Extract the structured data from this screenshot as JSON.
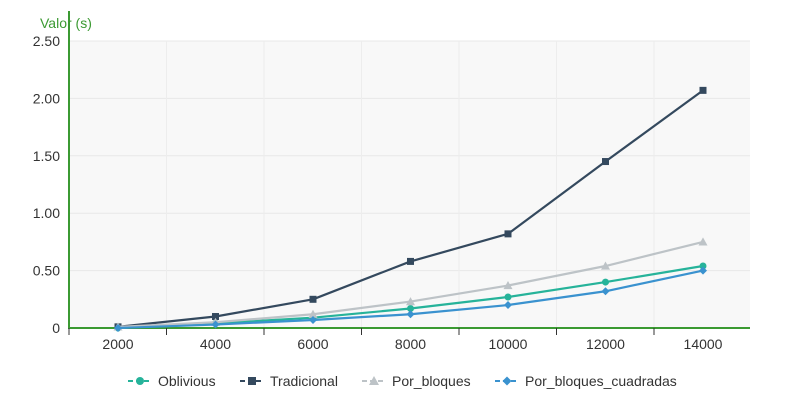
{
  "chart_data": {
    "type": "line",
    "ylabel": "Valor (s)",
    "xlabel": "",
    "ylim": [
      0,
      2.5
    ],
    "yticks": [
      0,
      0.5,
      1.0,
      1.5,
      2.0,
      2.5
    ],
    "ytick_labels": [
      "0",
      "0.50",
      "1.00",
      "1.50",
      "2.00",
      "2.50"
    ],
    "categories": [
      "2000",
      "4000",
      "6000",
      "8000",
      "10000",
      "12000",
      "14000"
    ],
    "series": [
      {
        "name": "Oblivious",
        "color": "#26b39a",
        "marker": "circle",
        "values": [
          0.0,
          0.04,
          0.09,
          0.17,
          0.27,
          0.4,
          0.54
        ]
      },
      {
        "name": "Tradicional",
        "color": "#34495e",
        "marker": "square",
        "values": [
          0.01,
          0.1,
          0.25,
          0.58,
          0.82,
          1.45,
          2.07
        ]
      },
      {
        "name": "Por_bloques",
        "color": "#bdc3c7",
        "marker": "triangle",
        "values": [
          0.01,
          0.05,
          0.12,
          0.23,
          0.37,
          0.54,
          0.75
        ]
      },
      {
        "name": "Por_bloques_cuadradas",
        "color": "#3a92cf",
        "marker": "diamond",
        "values": [
          0.0,
          0.03,
          0.07,
          0.12,
          0.2,
          0.32,
          0.5
        ]
      }
    ],
    "grid": true,
    "legend": "bottom",
    "axis_color": "#3b9a32",
    "ylabel_color": "#3b9a32"
  }
}
